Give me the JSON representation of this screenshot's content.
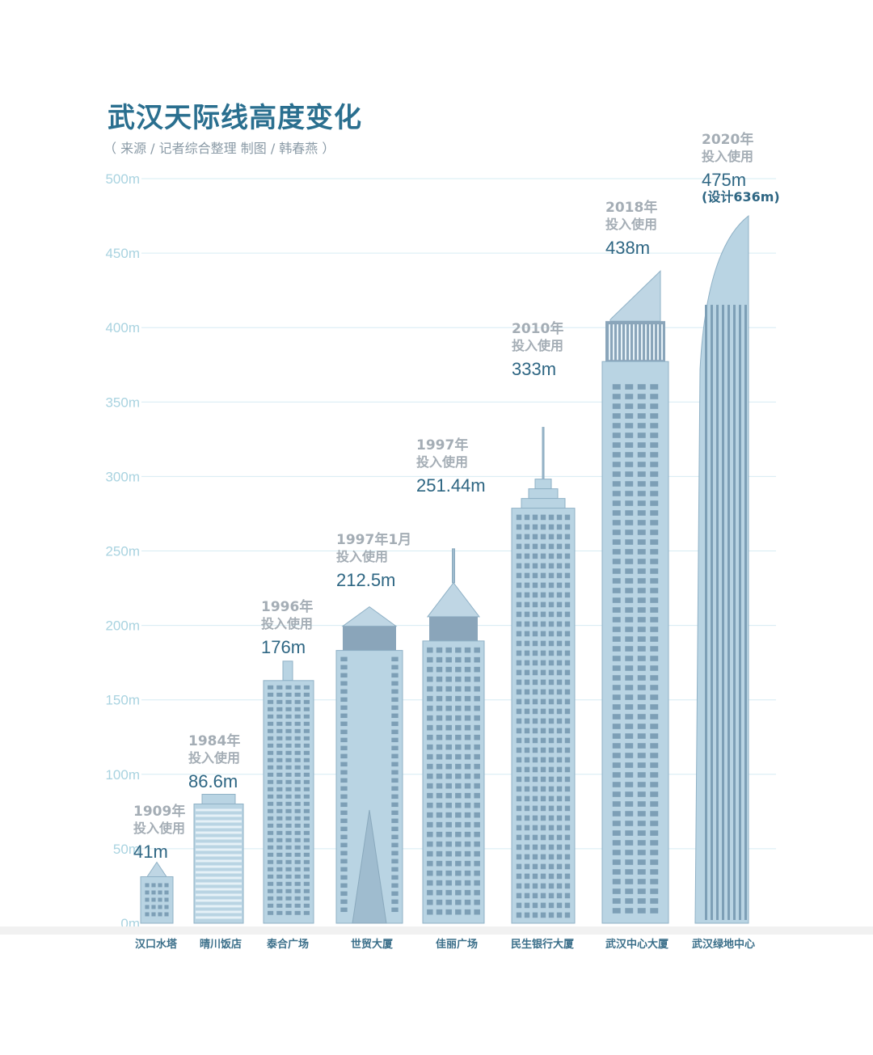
{
  "header": {
    "title": "武汉天际线高度变化",
    "subtitle": "（ 来源 / 记者综合整理   制图 / 韩春燕 ）"
  },
  "chart_data": {
    "type": "bar",
    "title": "武汉天际线高度变化",
    "subtitle": "（ 来源 / 记者综合整理   制图 / 韩春燕 ）",
    "xlabel": "",
    "ylabel": "",
    "ylim": [
      0,
      500
    ],
    "y_ticks": [
      "0m",
      "50m",
      "100m",
      "150m",
      "200m",
      "250m",
      "300m",
      "350m",
      "400m",
      "450m",
      "500m"
    ],
    "grid": true,
    "categories": [
      "汉口水塔",
      "晴川饭店",
      "泰合广场",
      "世贸大厦",
      "佳丽广场",
      "民生银行大厦",
      "武汉中心大厦",
      "武汉绿地中心"
    ],
    "values": [
      41,
      86.6,
      176,
      212.5,
      251.44,
      333,
      438,
      475
    ],
    "labels": [
      {
        "year": "1909年",
        "status": "投入使用",
        "height": "41m"
      },
      {
        "year": "1984年",
        "status": "投入使用",
        "height": "86.6m"
      },
      {
        "year": "1996年",
        "status": "投入使用",
        "height": "176m"
      },
      {
        "year": "1997年1月",
        "status": "投入使用",
        "height": "212.5m"
      },
      {
        "year": "1997年",
        "status": "投入使用",
        "height": "251.44m"
      },
      {
        "year": "2010年",
        "status": "投入使用",
        "height": "333m"
      },
      {
        "year": "2018年",
        "status": "投入使用",
        "height": "438m"
      },
      {
        "year": "2020年",
        "status": "投入使用",
        "height": "475m",
        "note": "(设计636m)"
      }
    ],
    "colors": {
      "building": "#b9d4e3",
      "building_dark": "#9fbccf",
      "grid": "#d6ecf3",
      "tick": "#a9d3e0",
      "title": "#2a6f8f"
    }
  }
}
